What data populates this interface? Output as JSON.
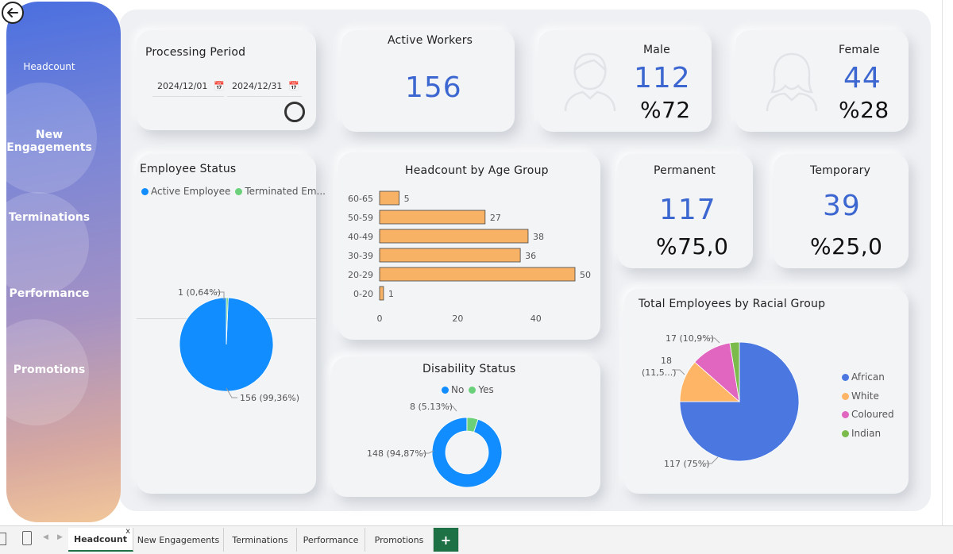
{
  "sidebar": {
    "items": [
      {
        "label": "Headcount"
      },
      {
        "label": "New\nEngagements"
      },
      {
        "label": "Terminations"
      },
      {
        "label": "Performance"
      },
      {
        "label": "Promotions"
      }
    ],
    "gradient_colors": [
      "#4a6fe0",
      "#a391c4",
      "#f2c79a"
    ]
  },
  "processing_period": {
    "title": "Processing Period",
    "start_date": "2024/12/01",
    "end_date": "2024/12/31"
  },
  "active_workers": {
    "title": "Active Workers",
    "value": "156"
  },
  "male": {
    "title": "Male",
    "value": "112",
    "pct": "%72"
  },
  "female": {
    "title": "Female",
    "value": "44",
    "pct": "%28"
  },
  "permanent": {
    "title": "Permanent",
    "value": "117",
    "pct": "%75,0"
  },
  "temporary": {
    "title": "Temporary",
    "value": "39",
    "pct": "%25,0"
  },
  "employee_status": {
    "title": "Employee Status",
    "legend": [
      "Active Employee",
      "Terminated Em..."
    ],
    "labels": [
      "156 (99,36%)",
      "1 (0,64%)"
    ]
  },
  "age_group": {
    "title": "Headcount by Age Group"
  },
  "disability": {
    "title": "Disability Status",
    "legend": [
      "No",
      "Yes"
    ],
    "labels": [
      "148 (94,87%)",
      "8 (5.13%)"
    ]
  },
  "racial": {
    "title": "Total Employees by Racial Group",
    "legend": [
      "African",
      "White",
      "Coloured",
      "Indian"
    ],
    "labels": [
      "117 (75%)",
      "18\n(11,5...)",
      "17 (10,9%)",
      ""
    ]
  },
  "colors": {
    "accent": "#3d67d0",
    "bar": "#f8b265",
    "active": "#118dff",
    "terminated": "#6ad07a",
    "african": "#4a78e0",
    "white": "#ffb566",
    "coloured": "#e066c0",
    "indian": "#7bbb4c"
  },
  "tabs": [
    {
      "label": "Headcount",
      "close": "x"
    },
    {
      "label": "New Engagements"
    },
    {
      "label": "Terminations"
    },
    {
      "label": "Performance"
    },
    {
      "label": "Promotions"
    }
  ],
  "add_tab_label": "+",
  "chart_data": [
    {
      "type": "bar",
      "orientation": "horizontal",
      "title": "Headcount by Age Group",
      "categories": [
        "60-65",
        "50-59",
        "40-49",
        "30-39",
        "20-29",
        "0-20"
      ],
      "values": [
        5,
        27,
        38,
        36,
        50,
        1
      ],
      "x_ticks": [
        "0",
        "20",
        "40"
      ],
      "xlim": [
        0,
        50
      ],
      "grid": false
    },
    {
      "type": "pie",
      "title": "Employee Status",
      "categories": [
        "Active Employee",
        "Terminated Em..."
      ],
      "values": [
        156,
        1
      ]
    },
    {
      "type": "pie",
      "donut": true,
      "title": "Disability Status",
      "categories": [
        "No",
        "Yes"
      ],
      "values": [
        148,
        8
      ]
    },
    {
      "type": "pie",
      "title": "Total Employees by Racial Group",
      "categories": [
        "African",
        "White",
        "Coloured",
        "Indian"
      ],
      "values": [
        117,
        18,
        17,
        4
      ],
      "legend_position": "right"
    }
  ]
}
